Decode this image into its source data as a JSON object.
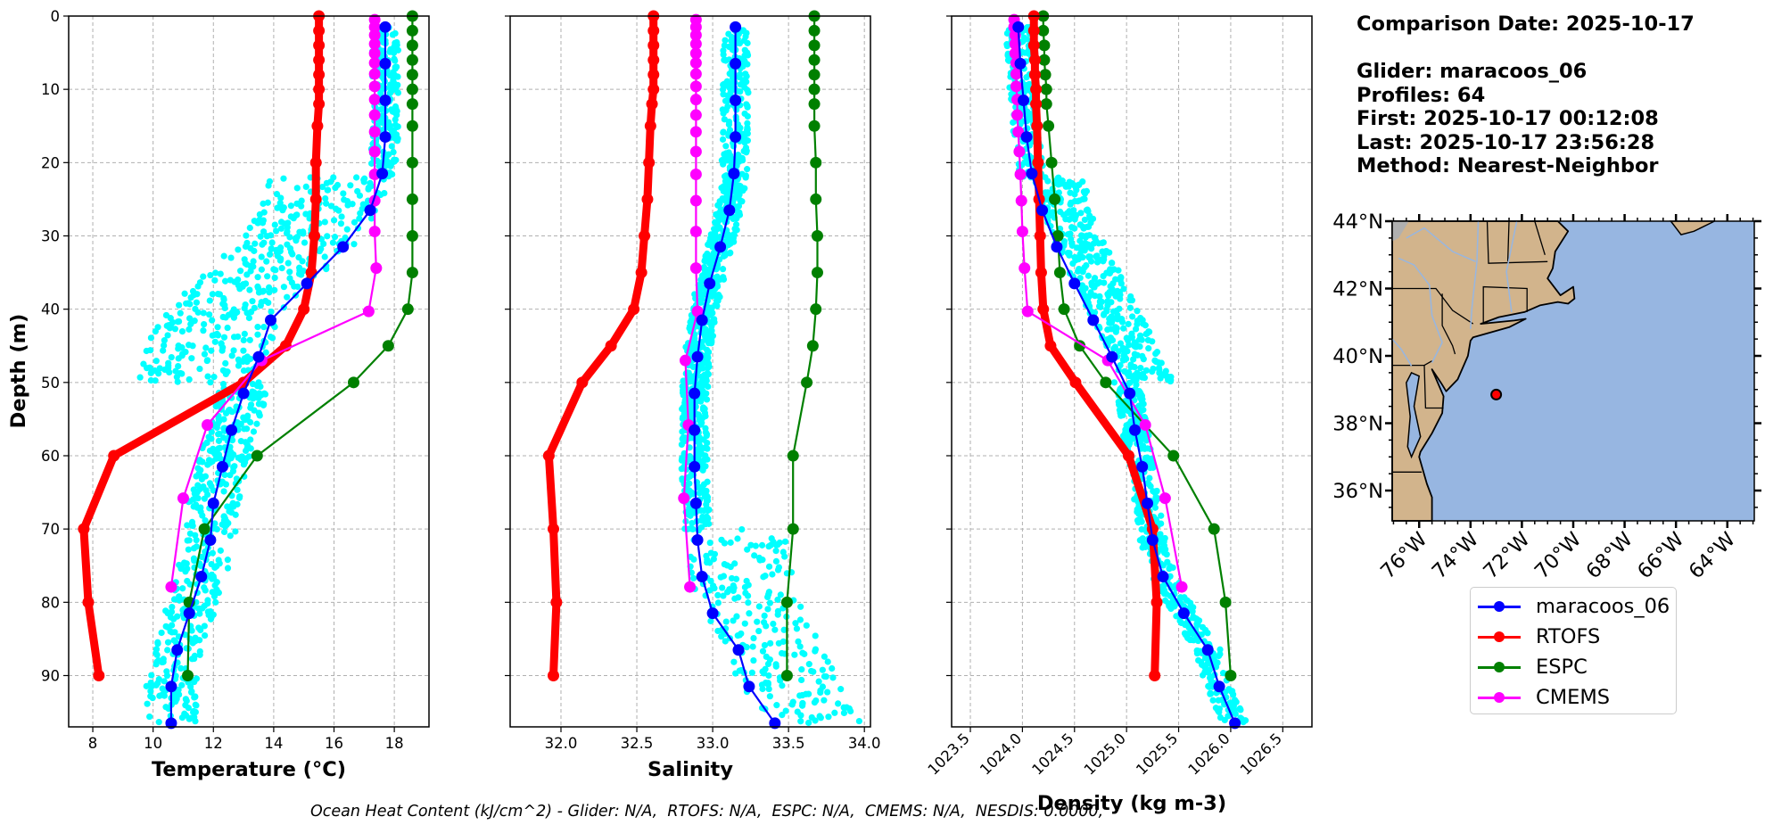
{
  "info_panel": {
    "comparison_date": "Comparison Date: 2025-10-17",
    "glider": "Glider: maracoos_06",
    "profiles": "Profiles: 64",
    "first": "First: 2025-10-17 00:12:08",
    "last": "Last: 2025-10-17 23:56:28",
    "method": "Method: Nearest-Neighbor"
  },
  "footer_text": "Ocean Heat Content (kJ/cm^2) - Glider: N/A,  RTOFS: N/A,  ESPC: N/A,  CMEMS: N/A,  NESDIS: 0.0000,",
  "legend": [
    {
      "label": "maracoos_06",
      "color": "#0000ff"
    },
    {
      "label": "RTOFS",
      "color": "#ff0000"
    },
    {
      "label": "ESPC",
      "color": "#008000"
    },
    {
      "label": "CMEMS",
      "color": "#ff00ff"
    }
  ],
  "colors": {
    "glider": "#0000ff",
    "rtofs": "#ff0000",
    "espc": "#008000",
    "cmems": "#ff00ff",
    "scatter": "#00ffff",
    "land": "#d2b48c",
    "ocean": "#97b6e1",
    "grid": "#b0b0b0"
  },
  "map": {
    "lon_ticks": [
      "76°W",
      "74°W",
      "72°W",
      "70°W",
      "68°W",
      "66°W",
      "64°W"
    ],
    "lon_values": [
      -76,
      -74,
      -72,
      -70,
      -68,
      -66,
      -64
    ],
    "lat_ticks": [
      "44°N",
      "42°N",
      "40°N",
      "38°N",
      "36°N"
    ],
    "lat_values": [
      44,
      42,
      40,
      38,
      36
    ],
    "extent": {
      "lon": [
        -77.05,
        -62.95
      ],
      "lat": [
        35.1,
        44.0
      ]
    },
    "glider_position": {
      "lon": -73.0,
      "lat": 38.85
    }
  },
  "chart_data": [
    {
      "type": "line",
      "id": "temperature",
      "xlabel": "Temperature (°C)",
      "ylabel": "Depth (m)",
      "xlim": [
        7.2,
        19.15
      ],
      "ylim": [
        97,
        0
      ],
      "xticks": [
        8,
        10,
        12,
        14,
        16,
        18
      ],
      "yticks": [
        0,
        10,
        20,
        30,
        40,
        50,
        60,
        70,
        80,
        90
      ],
      "grid": true,
      "scatter_range": {
        "name": "glider profiles",
        "spread": "cyan scatter of all 64 profiles"
      },
      "series": [
        {
          "name": "maracoos_06",
          "depth": [
            1.5,
            6.5,
            11.5,
            16.5,
            21.5,
            26.5,
            31.5,
            36.5,
            41.5,
            46.5,
            51.5,
            56.5,
            61.5,
            66.5,
            71.5,
            76.5,
            81.5,
            86.5,
            91.5,
            96.5
          ],
          "values": [
            17.7,
            17.7,
            17.7,
            17.7,
            17.6,
            17.2,
            16.3,
            15.1,
            13.9,
            13.5,
            13.0,
            12.6,
            12.3,
            12.0,
            11.9,
            11.6,
            11.2,
            10.8,
            10.6,
            10.6
          ]
        },
        {
          "name": "RTOFS",
          "depth": [
            0,
            2,
            4,
            6,
            8,
            10,
            12,
            15,
            20,
            25,
            30,
            35,
            40,
            45,
            50,
            60,
            70,
            80,
            90
          ],
          "values": [
            15.5,
            15.5,
            15.5,
            15.5,
            15.5,
            15.5,
            15.5,
            15.45,
            15.4,
            15.4,
            15.35,
            15.25,
            15.0,
            14.4,
            13.0,
            8.7,
            7.7,
            7.85,
            8.2
          ]
        },
        {
          "name": "ESPC",
          "depth": [
            0,
            2,
            4,
            6,
            8,
            10,
            12,
            15,
            20,
            25,
            30,
            35,
            40,
            45,
            50,
            60,
            70,
            80,
            90
          ],
          "values": [
            18.6,
            18.6,
            18.6,
            18.6,
            18.6,
            18.6,
            18.6,
            18.6,
            18.6,
            18.6,
            18.6,
            18.6,
            18.45,
            17.8,
            16.65,
            13.45,
            11.7,
            11.2,
            11.15
          ]
        },
        {
          "name": "CMEMS",
          "depth": [
            0.5,
            1.5,
            2.6,
            3.8,
            5.1,
            6.4,
            7.9,
            9.6,
            11.4,
            13.5,
            15.8,
            18.5,
            21.6,
            25.2,
            29.4,
            34.4,
            40.3,
            47.0,
            55.8,
            65.8,
            77.9
          ],
          "values": [
            17.35,
            17.35,
            17.35,
            17.35,
            17.35,
            17.35,
            17.35,
            17.35,
            17.35,
            17.35,
            17.35,
            17.35,
            17.35,
            17.35,
            17.35,
            17.4,
            17.15,
            13.6,
            11.8,
            11.0,
            10.6
          ]
        }
      ]
    },
    {
      "type": "line",
      "id": "salinity",
      "xlabel": "Salinity",
      "ylabel": "",
      "xlim": [
        31.665,
        34.04
      ],
      "ylim": [
        97,
        0
      ],
      "xticks": [
        "32.0",
        "32.5",
        "33.0",
        "33.5",
        "34.0"
      ],
      "yticks": [
        0,
        10,
        20,
        30,
        40,
        50,
        60,
        70,
        80,
        90
      ],
      "grid": true,
      "series": [
        {
          "name": "maracoos_06",
          "depth": [
            1.5,
            6.5,
            11.5,
            16.5,
            21.5,
            26.5,
            31.5,
            36.5,
            41.5,
            46.5,
            51.5,
            56.5,
            61.5,
            66.5,
            71.5,
            76.5,
            81.5,
            86.5,
            91.5,
            96.5
          ],
          "values": [
            33.15,
            33.15,
            33.15,
            33.15,
            33.14,
            33.11,
            33.05,
            32.98,
            32.93,
            32.9,
            32.88,
            32.88,
            32.88,
            32.89,
            32.9,
            32.93,
            33.0,
            33.17,
            33.24,
            33.41
          ]
        },
        {
          "name": "RTOFS",
          "depth": [
            0,
            2,
            4,
            6,
            8,
            10,
            12,
            15,
            20,
            25,
            30,
            35,
            40,
            45,
            50,
            60,
            70,
            80,
            90
          ],
          "values": [
            32.61,
            32.61,
            32.61,
            32.61,
            32.61,
            32.61,
            32.6,
            32.59,
            32.58,
            32.57,
            32.55,
            32.53,
            32.48,
            32.33,
            32.14,
            31.92,
            31.95,
            31.97,
            31.95
          ]
        },
        {
          "name": "ESPC",
          "depth": [
            0,
            2,
            4,
            6,
            8,
            10,
            12,
            15,
            20,
            25,
            30,
            35,
            40,
            45,
            50,
            60,
            70,
            80,
            90
          ],
          "values": [
            33.67,
            33.67,
            33.67,
            33.67,
            33.67,
            33.67,
            33.67,
            33.67,
            33.68,
            33.68,
            33.69,
            33.69,
            33.68,
            33.66,
            33.62,
            33.53,
            33.53,
            33.49,
            33.49
          ]
        },
        {
          "name": "CMEMS",
          "depth": [
            0.5,
            1.5,
            2.6,
            3.8,
            5.1,
            6.4,
            7.9,
            9.6,
            11.4,
            13.5,
            15.8,
            18.5,
            21.6,
            25.2,
            29.4,
            34.4,
            40.3,
            47.0,
            55.8,
            65.8,
            77.9
          ],
          "values": [
            32.89,
            32.89,
            32.89,
            32.89,
            32.89,
            32.89,
            32.89,
            32.89,
            32.89,
            32.89,
            32.89,
            32.89,
            32.89,
            32.89,
            32.89,
            32.89,
            32.9,
            32.82,
            32.84,
            32.81,
            32.85
          ]
        }
      ]
    },
    {
      "type": "line",
      "id": "density",
      "xlabel": "Density (kg m-3)",
      "ylabel": "",
      "xlim": [
        1023.32,
        1026.78
      ],
      "ylim": [
        97,
        0
      ],
      "xticks": [
        "1023.5",
        "1024.0",
        "1024.5",
        "1025.0",
        "1025.5",
        "1026.0",
        "1026.5"
      ],
      "yticks": [
        0,
        10,
        20,
        30,
        40,
        50,
        60,
        70,
        80,
        90
      ],
      "grid": true,
      "series": [
        {
          "name": "maracoos_06",
          "depth": [
            1.5,
            6.5,
            11.5,
            16.5,
            21.5,
            26.5,
            31.5,
            36.5,
            41.5,
            46.5,
            51.5,
            56.5,
            61.5,
            66.5,
            71.5,
            76.5,
            81.5,
            86.5,
            91.5,
            96.5
          ],
          "values": [
            1023.96,
            1023.98,
            1024.01,
            1024.04,
            1024.09,
            1024.19,
            1024.33,
            1024.5,
            1024.68,
            1024.86,
            1025.03,
            1025.08,
            1025.15,
            1025.2,
            1025.25,
            1025.35,
            1025.55,
            1025.78,
            1025.89,
            1026.04
          ]
        },
        {
          "name": "RTOFS",
          "depth": [
            0,
            2,
            4,
            6,
            8,
            10,
            12,
            15,
            20,
            25,
            30,
            35,
            40,
            45,
            50,
            60,
            70,
            80,
            90
          ],
          "values": [
            1024.11,
            1024.11,
            1024.11,
            1024.12,
            1024.12,
            1024.13,
            1024.13,
            1024.14,
            1024.15,
            1024.16,
            1024.17,
            1024.18,
            1024.2,
            1024.27,
            1024.51,
            1025.02,
            1025.25,
            1025.29,
            1025.27
          ]
        },
        {
          "name": "ESPC",
          "depth": [
            0,
            2,
            4,
            6,
            8,
            10,
            12,
            15,
            20,
            25,
            30,
            35,
            40,
            45,
            50,
            60,
            70,
            80,
            90
          ],
          "values": [
            1024.2,
            1024.2,
            1024.21,
            1024.21,
            1024.22,
            1024.23,
            1024.23,
            1024.25,
            1024.28,
            1024.31,
            1024.34,
            1024.36,
            1024.4,
            1024.55,
            1024.8,
            1025.45,
            1025.84,
            1025.95,
            1026.0
          ]
        },
        {
          "name": "CMEMS",
          "depth": [
            0.5,
            1.5,
            2.6,
            3.8,
            5.1,
            6.4,
            7.9,
            9.6,
            11.4,
            13.5,
            15.8,
            18.5,
            21.6,
            25.2,
            29.4,
            34.4,
            40.3,
            47.0,
            55.8,
            65.8,
            77.9
          ],
          "values": [
            1023.92,
            1023.92,
            1023.93,
            1023.93,
            1023.93,
            1023.94,
            1023.94,
            1023.94,
            1023.95,
            1023.95,
            1023.96,
            1023.97,
            1023.98,
            1023.99,
            1024.0,
            1024.02,
            1024.05,
            1024.82,
            1025.18,
            1025.37,
            1025.53
          ]
        }
      ]
    }
  ]
}
